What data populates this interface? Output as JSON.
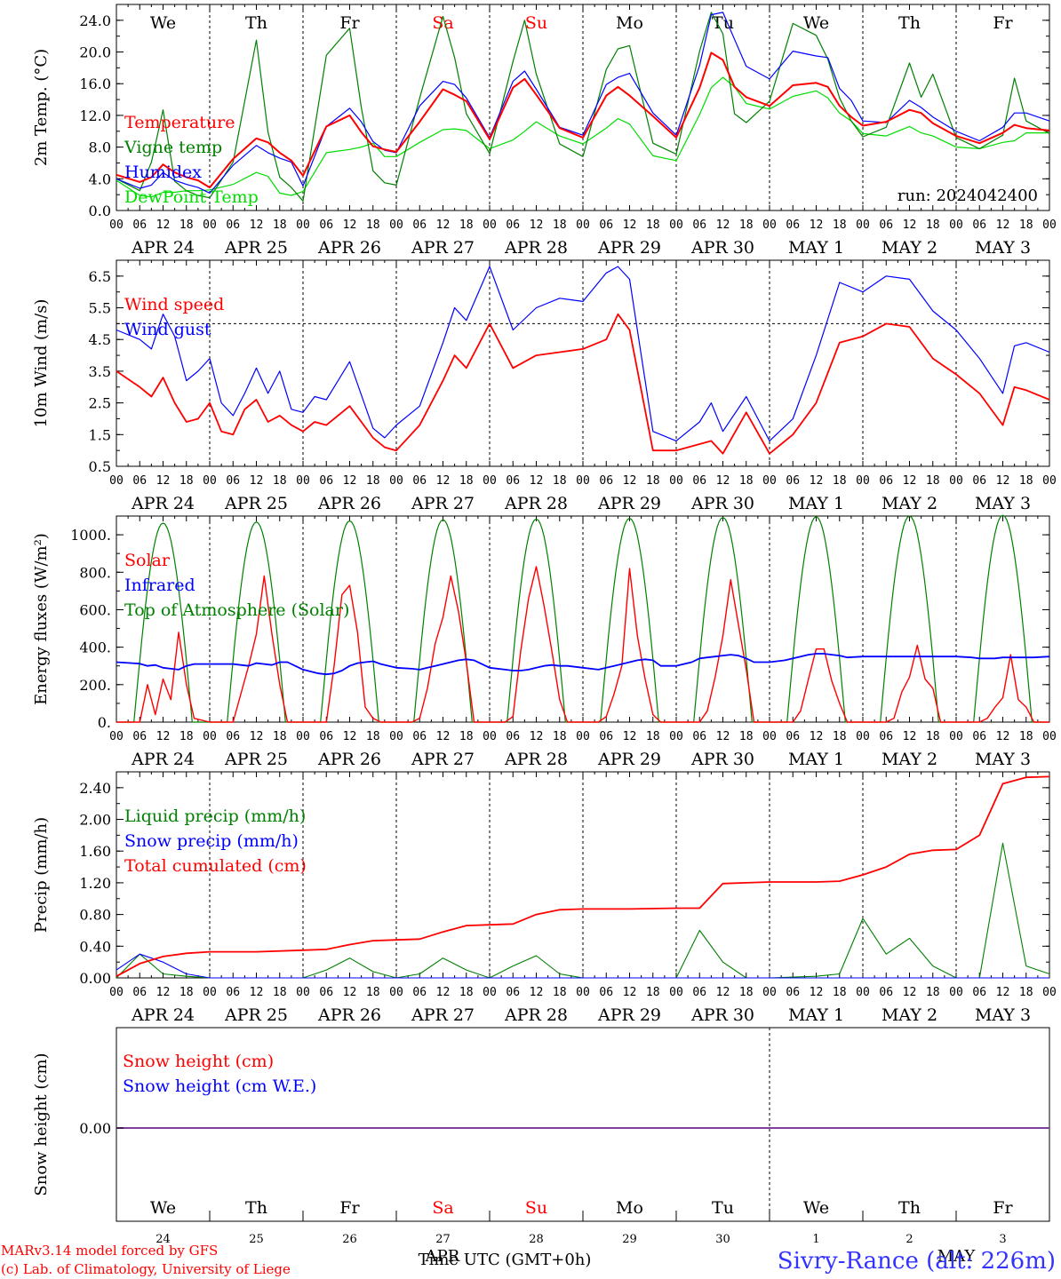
{
  "page": {
    "credit_line1": "MARv3.14 model forced by GFS",
    "credit_line2": "(c) Lab. of Climatology, University of Liege",
    "xlabel": "Time UTC (GMT+0h)",
    "month_overlap_left": "APR",
    "month_overlap_right": "MAY",
    "station": "Sivry-Rance (alt: 226m)",
    "run": "run: 2024042400",
    "colors": {
      "red": "#ff0000",
      "blue": "#0000ff",
      "green": "#008000",
      "lightgreen": "#00dd00",
      "purple": "#7f3f9f"
    }
  },
  "axis": {
    "hour_ticks": [
      "00",
      "06",
      "12",
      "18",
      "00",
      "06",
      "12",
      "18",
      "00",
      "06",
      "12",
      "18",
      "00",
      "06",
      "12",
      "18",
      "00",
      "06",
      "12",
      "18",
      "00",
      "06",
      "12",
      "18",
      "00",
      "06",
      "12",
      "18",
      "00",
      "06",
      "12",
      "18",
      "00",
      "06",
      "12",
      "18",
      "00",
      "06",
      "12",
      "18",
      "00"
    ],
    "day_labels": [
      "APR 24",
      "APR 25",
      "APR 26",
      "APR 27",
      "APR 28",
      "APR 29",
      "APR 30",
      "MAY  1",
      "MAY  2",
      "MAY  3"
    ],
    "weekdays": [
      {
        "label": "We",
        "color": "#000000"
      },
      {
        "label": "Th",
        "color": "#000000"
      },
      {
        "label": "Fr",
        "color": "#000000"
      },
      {
        "label": "Sa",
        "color": "#ff0000"
      },
      {
        "label": "Su",
        "color": "#ff0000"
      },
      {
        "label": "Mo",
        "color": "#000000"
      },
      {
        "label": "Tu",
        "color": "#000000"
      },
      {
        "label": "We",
        "color": "#000000"
      },
      {
        "label": "Th",
        "color": "#000000"
      },
      {
        "label": "Fr",
        "color": "#000000"
      }
    ],
    "bottom_day_numbers": [
      "24",
      "25",
      "26",
      "27",
      "28",
      "29",
      "30",
      "1",
      "2",
      "3"
    ]
  },
  "chart_data": [
    {
      "type": "line",
      "id": "temperature",
      "ylabel": "2m Temp. (°C)",
      "ylim": [
        0,
        26
      ],
      "yticks": [
        "0.0",
        "4.0",
        "8.0",
        "12.0",
        "16.0",
        "20.0",
        "24.0"
      ],
      "x_hours": [
        0,
        6,
        9,
        12,
        15,
        18,
        21,
        24,
        30,
        36,
        39,
        42,
        45,
        48,
        54,
        60,
        63,
        66,
        69,
        72,
        78,
        84,
        87,
        90,
        96,
        102,
        105,
        108,
        114,
        120,
        126,
        129,
        132,
        138,
        144,
        150,
        153,
        156,
        159,
        162,
        168,
        174,
        180,
        183,
        186,
        189,
        192,
        198,
        204,
        207,
        210,
        216,
        222,
        228,
        231,
        234,
        240
      ],
      "series": [
        {
          "name": "Temperature",
          "color": "#ff0000",
          "values": [
            4.5,
            3.6,
            4.2,
            5.8,
            4.8,
            4.2,
            3.8,
            2.9,
            6.5,
            9.1,
            8.6,
            7.3,
            6.3,
            4.4,
            10.6,
            12.0,
            9.9,
            8.1,
            7.7,
            7.4,
            11.2,
            15.3,
            14.6,
            13.8,
            9.0,
            15.5,
            16.6,
            14.6,
            10.4,
            9.2,
            14.5,
            15.6,
            14.5,
            11.9,
            9.2,
            15.5,
            19.9,
            19.0,
            15.6,
            14.3,
            13.2,
            15.8,
            16.1,
            15.6,
            13.2,
            11.8,
            10.7,
            11.2,
            12.7,
            12.3,
            11.0,
            9.4,
            8.5,
            9.8,
            10.8,
            10.4,
            10.1
          ]
        },
        {
          "name": "Vigne temp",
          "color": "#008000",
          "values": [
            4.0,
            2.5,
            6.1,
            12.7,
            3.7,
            2.5,
            1.9,
            1.6,
            6.1,
            21.5,
            9.9,
            4.2,
            2.9,
            1.2,
            19.6,
            23.0,
            13.0,
            5.0,
            3.5,
            3.2,
            14.2,
            24.5,
            19.3,
            12.2,
            7.2,
            18.8,
            24.0,
            17.2,
            8.4,
            6.8,
            17.8,
            20.4,
            20.8,
            8.5,
            7.1,
            20.1,
            25.0,
            22.3,
            12.2,
            11.1,
            13.8,
            23.6,
            22.1,
            19.1,
            14.2,
            11.3,
            9.3,
            10.5,
            18.6,
            14.3,
            17.2,
            9.2,
            7.8,
            9.5,
            16.7,
            11.3,
            9.7
          ]
        },
        {
          "name": "Humidex",
          "color": "#0000ff",
          "values": [
            4.0,
            2.8,
            3.2,
            4.8,
            3.8,
            3.3,
            2.9,
            2.2,
            5.7,
            8.2,
            7.3,
            6.6,
            6.1,
            3.1,
            10.6,
            12.9,
            11.2,
            8.7,
            7.6,
            7.3,
            13.2,
            16.3,
            15.9,
            14.2,
            9.2,
            16.3,
            17.6,
            15.3,
            10.5,
            9.5,
            15.9,
            16.8,
            17.3,
            12.3,
            9.5,
            18.3,
            24.7,
            25.0,
            21.6,
            18.2,
            16.6,
            20.1,
            19.5,
            19.3,
            15.4,
            13.9,
            11.3,
            11.1,
            13.9,
            13.0,
            11.8,
            10.0,
            8.8,
            10.5,
            12.3,
            12.3,
            11.3
          ]
        },
        {
          "name": "DewPoint Temp",
          "color": "#00dd00",
          "values": [
            3.8,
            1.9,
            1.7,
            2.3,
            2.3,
            2.5,
            2.5,
            2.6,
            3.3,
            4.8,
            4.3,
            2.2,
            1.9,
            2.4,
            7.3,
            7.7,
            8.0,
            8.5,
            6.8,
            6.8,
            8.6,
            10.2,
            10.3,
            10.1,
            7.8,
            8.9,
            10.0,
            11.2,
            9.4,
            8.4,
            10.4,
            11.6,
            10.9,
            6.9,
            6.3,
            12.1,
            15.5,
            16.8,
            15.6,
            13.5,
            12.8,
            14.4,
            15.1,
            14.2,
            12.3,
            11.3,
            9.7,
            9.4,
            10.6,
            9.8,
            9.4,
            8.0,
            7.8,
            8.6,
            8.8,
            9.8,
            9.8
          ]
        }
      ]
    },
    {
      "type": "line",
      "id": "wind",
      "ylabel": "10m Wind (m/s)",
      "ylim": [
        0.5,
        7.0
      ],
      "yticks": [
        "0.5",
        "1.5",
        "2.5",
        "3.5",
        "4.5",
        "5.5",
        "6.5"
      ],
      "reference_line": 5.0,
      "x_hours": [
        0,
        6,
        9,
        12,
        15,
        18,
        21,
        24,
        27,
        30,
        33,
        36,
        39,
        42,
        45,
        48,
        51,
        54,
        60,
        66,
        69,
        72,
        78,
        84,
        87,
        90,
        96,
        102,
        108,
        114,
        120,
        126,
        129,
        132,
        138,
        144,
        150,
        153,
        156,
        162,
        168,
        174,
        180,
        186,
        192,
        198,
        204,
        210,
        216,
        222,
        228,
        231,
        234,
        240
      ],
      "series": [
        {
          "name": "Wind speed",
          "color": "#ff0000",
          "values": [
            3.5,
            3.0,
            2.7,
            3.3,
            2.5,
            1.9,
            2.0,
            2.5,
            1.6,
            1.5,
            2.3,
            2.6,
            1.9,
            2.1,
            1.8,
            1.6,
            1.9,
            1.8,
            2.4,
            1.4,
            1.1,
            1.0,
            1.8,
            3.2,
            4.0,
            3.6,
            5.0,
            3.6,
            4.0,
            4.1,
            4.2,
            4.5,
            5.3,
            4.8,
            1.0,
            1.0,
            1.2,
            1.3,
            0.9,
            2.2,
            0.9,
            1.5,
            2.5,
            4.4,
            4.6,
            5.0,
            4.9,
            3.9,
            3.4,
            2.8,
            1.8,
            3.0,
            2.9,
            2.6
          ]
        },
        {
          "name": "Wind gust",
          "color": "#0000ff",
          "values": [
            4.8,
            4.5,
            4.2,
            5.3,
            4.6,
            3.2,
            3.5,
            3.9,
            2.5,
            2.1,
            2.8,
            3.6,
            2.8,
            3.5,
            2.3,
            2.2,
            2.7,
            2.6,
            3.8,
            1.7,
            1.4,
            1.8,
            2.4,
            4.4,
            5.5,
            5.1,
            6.8,
            4.8,
            5.5,
            5.8,
            5.7,
            6.6,
            6.8,
            6.4,
            1.6,
            1.3,
            1.9,
            2.5,
            1.6,
            2.7,
            1.3,
            2.0,
            4.0,
            6.3,
            6.0,
            6.5,
            6.4,
            5.4,
            4.8,
            3.9,
            2.8,
            4.3,
            4.4,
            4.1
          ]
        }
      ]
    },
    {
      "type": "line",
      "id": "energy",
      "ylabel": "Energy fluxes (W/m²)",
      "ylim": [
        0,
        1100
      ],
      "yticks": [
        "0.",
        "200.",
        "400.",
        "600.",
        "800.",
        "1000."
      ],
      "x_hours": [
        0,
        4,
        6,
        8,
        10,
        12,
        14,
        16,
        18,
        20,
        24,
        28,
        30,
        32,
        34,
        36,
        38,
        40,
        42,
        44,
        48,
        52,
        54,
        56,
        58,
        60,
        62,
        64,
        66,
        68,
        72,
        76,
        78,
        80,
        82,
        84,
        86,
        88,
        90,
        92,
        96,
        100,
        102,
        104,
        106,
        108,
        110,
        112,
        114,
        116,
        120,
        124,
        126,
        128,
        130,
        132,
        134,
        136,
        138,
        140,
        144,
        148,
        150,
        152,
        154,
        156,
        158,
        160,
        162,
        164,
        168,
        172,
        174,
        176,
        178,
        180,
        182,
        184,
        186,
        188,
        192,
        196,
        198,
        200,
        202,
        204,
        206,
        208,
        210,
        212,
        216,
        220,
        222,
        224,
        226,
        228,
        230,
        232,
        234,
        236,
        240
      ],
      "series": [
        {
          "name": "Solar",
          "color": "#ff0000",
          "values": [
            0,
            0,
            0,
            200,
            40,
            230,
            120,
            480,
            200,
            20,
            0,
            0,
            0,
            150,
            300,
            470,
            780,
            470,
            200,
            0,
            0,
            0,
            0,
            300,
            680,
            730,
            480,
            80,
            20,
            0,
            0,
            0,
            20,
            180,
            420,
            560,
            780,
            590,
            320,
            0,
            0,
            0,
            30,
            380,
            660,
            830,
            620,
            380,
            120,
            0,
            0,
            0,
            30,
            150,
            300,
            820,
            460,
            230,
            40,
            0,
            0,
            0,
            0,
            60,
            240,
            460,
            760,
            520,
            280,
            0,
            0,
            0,
            0,
            60,
            230,
            390,
            390,
            220,
            100,
            0,
            0,
            0,
            0,
            20,
            160,
            240,
            410,
            230,
            180,
            0,
            0,
            0,
            0,
            20,
            80,
            130,
            360,
            120,
            80,
            0,
            0
          ]
        },
        {
          "name": "Infrared",
          "color": "#0000ff",
          "values": [
            320,
            315,
            312,
            300,
            305,
            290,
            285,
            280,
            300,
            310,
            310,
            310,
            310,
            305,
            300,
            315,
            310,
            305,
            320,
            320,
            280,
            260,
            255,
            260,
            275,
            300,
            315,
            320,
            325,
            310,
            290,
            285,
            280,
            290,
            300,
            310,
            320,
            330,
            335,
            330,
            290,
            280,
            275,
            275,
            280,
            290,
            300,
            305,
            300,
            300,
            290,
            280,
            290,
            300,
            310,
            320,
            330,
            335,
            330,
            300,
            300,
            320,
            340,
            345,
            350,
            355,
            360,
            355,
            340,
            320,
            320,
            330,
            340,
            350,
            360,
            365,
            365,
            360,
            355,
            345,
            350,
            350,
            350,
            350,
            350,
            350,
            350,
            350,
            350,
            350,
            350,
            345,
            340,
            340,
            340,
            345,
            345,
            345,
            345,
            345,
            350
          ]
        },
        {
          "name": "Top of Atmosphere (Solar)",
          "color": "#008000",
          "daylight_hours": [
            4.5,
            19.5
          ],
          "peak_values": [
            1062,
            1068,
            1074,
            1080,
            1084,
            1088,
            1092,
            1096,
            1100,
            1104
          ]
        }
      ]
    },
    {
      "type": "line",
      "id": "precip",
      "ylabel": "Precip (mm/h)",
      "ylim": [
        0,
        2.6
      ],
      "yticks": [
        "0.00",
        "0.40",
        "0.80",
        "1.20",
        "1.60",
        "2.00",
        "2.40"
      ],
      "x_hours": [
        0,
        6,
        12,
        18,
        24,
        36,
        48,
        54,
        60,
        66,
        72,
        78,
        84,
        90,
        96,
        102,
        108,
        114,
        120,
        132,
        144,
        150,
        156,
        162,
        168,
        180,
        186,
        192,
        198,
        204,
        210,
        216,
        222,
        228,
        234,
        240
      ],
      "series": [
        {
          "name": "Liquid precip (mm/h)",
          "color": "#008000",
          "values": [
            0.0,
            0.3,
            0.05,
            0.02,
            0.0,
            0.0,
            0.0,
            0.1,
            0.25,
            0.08,
            0.0,
            0.05,
            0.25,
            0.1,
            0.0,
            0.15,
            0.28,
            0.05,
            0.0,
            0.0,
            0.0,
            0.6,
            0.2,
            0.0,
            0.0,
            0.02,
            0.05,
            0.75,
            0.3,
            0.5,
            0.15,
            0.0,
            0.0,
            1.7,
            0.15,
            0.05
          ]
        },
        {
          "name": "Snow precip (mm/h)",
          "color": "#0000ff",
          "values": [
            0.1,
            0.3,
            0.2,
            0.05,
            0.0,
            0.0,
            0.0,
            0.0,
            0.0,
            0.0,
            0.0,
            0.0,
            0.0,
            0.0,
            0.0,
            0.0,
            0.0,
            0.0,
            0.0,
            0.0,
            0.0,
            0.0,
            0.0,
            0.0,
            0.0,
            0.0,
            0.0,
            0.0,
            0.0,
            0.0,
            0.0,
            0.0,
            0.0,
            0.0,
            0.0,
            0.0
          ]
        },
        {
          "name": "Total cumulated (cm)",
          "color": "#ff0000",
          "values": [
            0.02,
            0.18,
            0.27,
            0.31,
            0.33,
            0.33,
            0.35,
            0.36,
            0.42,
            0.47,
            0.48,
            0.49,
            0.58,
            0.66,
            0.67,
            0.68,
            0.8,
            0.86,
            0.87,
            0.87,
            0.88,
            0.88,
            1.19,
            1.2,
            1.21,
            1.21,
            1.22,
            1.3,
            1.4,
            1.56,
            1.61,
            1.62,
            1.8,
            2.45,
            2.53,
            2.54
          ]
        }
      ]
    },
    {
      "type": "line",
      "id": "snow",
      "ylabel": "Snow height (cm)",
      "yticks": [
        "0.00"
      ],
      "series": [
        {
          "name": "Snow height (cm)",
          "color": "#ff0000",
          "values": [
            0.0
          ]
        },
        {
          "name": "Snow height (cm W.E.)",
          "color": "#0000ff",
          "values": [
            0.0
          ]
        }
      ]
    }
  ]
}
